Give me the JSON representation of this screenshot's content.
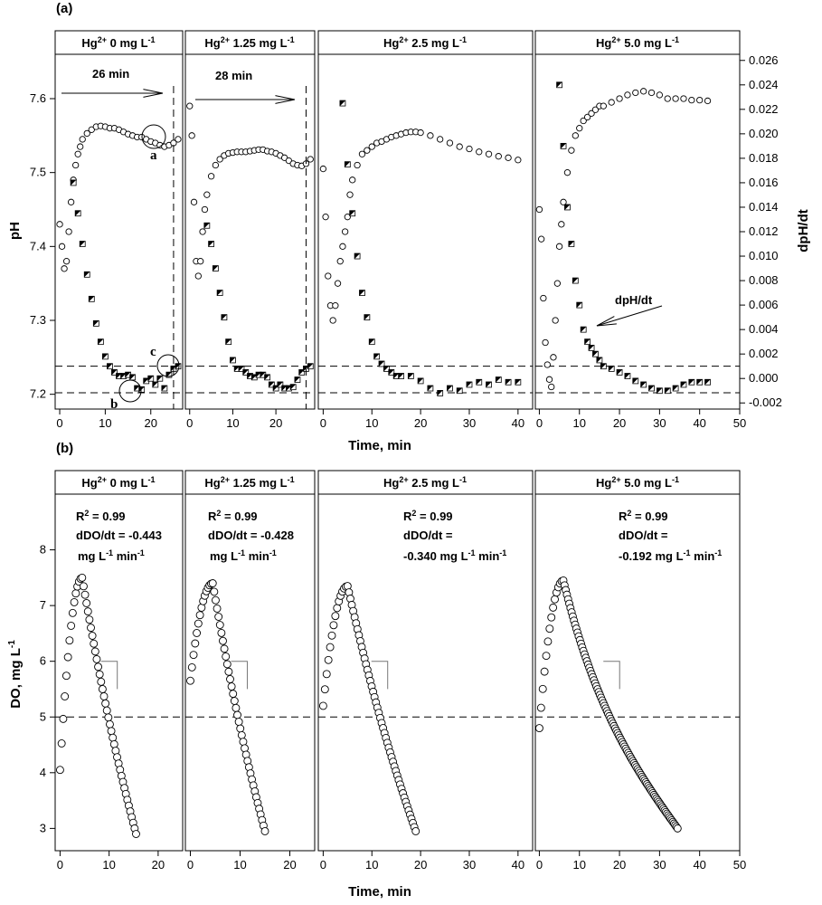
{
  "figure": {
    "panel_a_label": "(a)",
    "panel_b_label": "(b)",
    "a_ylabel_left": "pH",
    "a_ylabel_right": "dpH/dt",
    "a_xlabel": "Time, min",
    "b_ylabel_prefix": "DO, mg L",
    "b_ylabel_sup": "-1",
    "b_xlabel": "Time, min"
  },
  "colors": {
    "marker_fill": "#000000",
    "marker_edge": "#000000",
    "background": "#ffffff"
  },
  "facet_headers": [
    {
      "pre": "Hg",
      "sup1": "2+",
      "mid": " 0 mg L",
      "sup2": "-1"
    },
    {
      "pre": "Hg",
      "sup1": "2+",
      "mid": " 1.25 mg L",
      "sup2": "-1"
    },
    {
      "pre": "Hg",
      "sup1": "2+",
      "mid": " 2.5 mg L",
      "sup2": "-1"
    },
    {
      "pre": "Hg",
      "sup1": "2+",
      "mid": " 5.0 mg L",
      "sup2": "-1"
    }
  ],
  "annotations_a": {
    "arrow1_label": "26 min",
    "arrow2_label": "28 min",
    "dpdt_label": "dpH/dt",
    "point_a": "a",
    "point_b": "b",
    "point_c": "c"
  },
  "annotations_b": [
    {
      "r2": "R",
      "r2_sup": "2",
      "r2_val": " =  0.99",
      "slope_line": "dDO/dt = -0.443",
      "unit_line": "mg L",
      "u1": "-1",
      "u_mid": " min",
      "u2": "-1",
      "unit_prefix": ""
    },
    {
      "r2": "R",
      "r2_sup": "2",
      "r2_val": " =  0.99",
      "slope_line": "dDO/dt = -0.428",
      "unit_line": "mg L",
      "u1": "-1",
      "u_mid": " min",
      "u2": "-1",
      "unit_prefix": ""
    },
    {
      "r2": "R",
      "r2_sup": "2",
      "r2_val": " =  0.99",
      "slope_line": "dDO/dt =",
      "unit_line": "mg L",
      "u1": "-1",
      "u_mid": " min",
      "u2": "-1",
      "unit_prefix": "-0.340 "
    },
    {
      "r2": "R",
      "r2_sup": "2",
      "r2_val": " =  0.99",
      "slope_line": "dDO/dt =",
      "unit_line": "mg L",
      "u1": "-1",
      "u_mid": " min",
      "u2": "-1",
      "unit_prefix": "-0.192 "
    }
  ],
  "chart_data": [
    {
      "panel": "a",
      "type": "scatter",
      "title": "",
      "xlabel": "Time, min",
      "ylabel": "pH",
      "y2label": "dpH/dt",
      "ylim": [
        7.18,
        7.66
      ],
      "y2lim": [
        -0.0025,
        0.0265
      ],
      "yticks": [
        "7.2",
        "7.3",
        "7.4",
        "7.5",
        "7.6"
      ],
      "y2ticks": [
        "-0.002",
        "0.000",
        "0.002",
        "0.004",
        "0.006",
        "0.008",
        "0.010",
        "0.012",
        "0.014",
        "0.016",
        "0.018",
        "0.020",
        "0.022",
        "0.024",
        "0.026"
      ],
      "facets": [
        {
          "condition": "Hg2+ 0 mg L-1",
          "xlim": [
            -1,
            27
          ],
          "xticks": [
            "0",
            "10",
            "20"
          ],
          "series": [
            {
              "name": "pH",
              "marker": "open-circle",
              "x": [
                0,
                0.5,
                1,
                1.5,
                2,
                2.5,
                3,
                3.5,
                4,
                4.5,
                5,
                6,
                7,
                8,
                9,
                10,
                11,
                12,
                13,
                14,
                15,
                16,
                17,
                18,
                19,
                20,
                21,
                22,
                23,
                24,
                25,
                26
              ],
              "y": [
                7.43,
                7.4,
                7.37,
                7.38,
                7.42,
                7.46,
                7.49,
                7.51,
                7.525,
                7.535,
                7.545,
                7.553,
                7.558,
                7.562,
                7.563,
                7.562,
                7.56,
                7.56,
                7.558,
                7.555,
                7.552,
                7.55,
                7.548,
                7.548,
                7.545,
                7.542,
                7.54,
                7.537,
                7.535,
                7.537,
                7.54,
                7.545
              ]
            },
            {
              "name": "dpH/dt",
              "marker": "half-filled-square",
              "x": [
                3,
                4,
                5,
                6,
                7,
                8,
                9,
                10,
                11,
                12,
                13,
                14,
                15,
                16,
                17,
                18,
                19,
                20,
                21,
                22,
                23,
                24,
                25,
                26
              ],
              "y": [
                0.016,
                0.0135,
                0.011,
                0.0085,
                0.0065,
                0.0045,
                0.003,
                0.0018,
                0.001,
                0.0005,
                0.0002,
                0.0002,
                0.0003,
                0.0001,
                -0.0008,
                -0.0009,
                -0.0002,
                0.0,
                -0.0005,
                0.0,
                -0.0008,
                0.0003,
                0.0008,
                0.001
              ]
            }
          ],
          "vline_x": 25
        },
        {
          "condition": "Hg2+ 1.25 mg L-1",
          "xlim": [
            -1,
            29
          ],
          "xticks": [
            "0",
            "10",
            "20"
          ],
          "series": [
            {
              "name": "pH",
              "marker": "open-circle",
              "x": [
                0,
                0.5,
                1,
                1.5,
                2,
                2.5,
                3,
                3.5,
                4,
                5,
                6,
                7,
                8,
                9,
                10,
                11,
                12,
                13,
                14,
                15,
                16,
                17,
                18,
                19,
                20,
                21,
                22,
                23,
                24,
                25,
                26,
                27,
                28
              ],
              "y": [
                7.59,
                7.55,
                7.46,
                7.38,
                7.36,
                7.38,
                7.42,
                7.45,
                7.47,
                7.495,
                7.51,
                7.518,
                7.523,
                7.526,
                7.527,
                7.528,
                7.528,
                7.528,
                7.529,
                7.53,
                7.531,
                7.531,
                7.529,
                7.528,
                7.526,
                7.523,
                7.52,
                7.516,
                7.512,
                7.51,
                7.509,
                7.512,
                7.518
              ]
            },
            {
              "name": "dpH/dt",
              "marker": "half-filled-square",
              "x": [
                4,
                5,
                6,
                7,
                8,
                9,
                10,
                11,
                12,
                13,
                14,
                15,
                16,
                17,
                18,
                19,
                20,
                21,
                22,
                23,
                24,
                25,
                26,
                27,
                28
              ],
              "y": [
                0.0125,
                0.011,
                0.009,
                0.007,
                0.005,
                0.003,
                0.0015,
                0.0008,
                0.0008,
                0.0005,
                0.0002,
                0.0001,
                0.0003,
                0.0003,
                0.0001,
                -0.0005,
                -0.0008,
                -0.0005,
                -0.0008,
                -0.0008,
                -0.0007,
                -0.0001,
                0.0005,
                0.0008,
                0.001
              ]
            }
          ],
          "vline_x": 27
        },
        {
          "condition": "Hg2+ 2.5 mg L-1",
          "xlim": [
            -1,
            43
          ],
          "xticks": [
            "0",
            "10",
            "20",
            "30",
            "40"
          ],
          "series": [
            {
              "name": "pH",
              "marker": "open-circle",
              "x": [
                0,
                0.5,
                1,
                1.5,
                2,
                2.5,
                3,
                3.5,
                4,
                4.5,
                5,
                5.5,
                6,
                7,
                8,
                9,
                10,
                11,
                12,
                13,
                14,
                15,
                16,
                17,
                18,
                19,
                20,
                22,
                24,
                26,
                28,
                30,
                32,
                34,
                36,
                38,
                40
              ],
              "y": [
                7.505,
                7.44,
                7.36,
                7.32,
                7.3,
                7.32,
                7.35,
                7.38,
                7.4,
                7.42,
                7.44,
                7.47,
                7.49,
                7.51,
                7.525,
                7.53,
                7.535,
                7.54,
                7.542,
                7.545,
                7.548,
                7.55,
                7.552,
                7.554,
                7.555,
                7.555,
                7.554,
                7.55,
                7.545,
                7.54,
                7.535,
                7.532,
                7.528,
                7.525,
                7.522,
                7.52,
                7.517
              ]
            },
            {
              "name": "dpH/dt",
              "marker": "half-filled-square",
              "x": [
                4,
                5,
                6,
                7,
                8,
                9,
                10,
                11,
                12,
                13,
                14,
                15,
                16,
                18,
                20,
                22,
                24,
                26,
                28,
                30,
                32,
                34,
                36,
                38,
                40
              ],
              "y": [
                0.0225,
                0.0175,
                0.0135,
                0.01,
                0.007,
                0.005,
                0.003,
                0.0018,
                0.0012,
                0.0008,
                0.0005,
                0.0002,
                0.0002,
                0.0002,
                -0.0002,
                -0.0008,
                -0.0012,
                -0.0008,
                -0.001,
                -0.0005,
                -0.0003,
                -0.0005,
                -0.0001,
                -0.0003,
                -0.0003
              ]
            }
          ]
        },
        {
          "condition": "Hg2+ 5.0 mg L-1",
          "xlim": [
            -1,
            50
          ],
          "xticks": [
            "0",
            "10",
            "20",
            "30",
            "40",
            "50"
          ],
          "series": [
            {
              "name": "pH",
              "marker": "open-circle",
              "x": [
                0,
                0.5,
                1,
                1.5,
                2,
                2.5,
                3,
                3.5,
                4,
                4.5,
                5,
                5.5,
                6,
                7,
                8,
                9,
                10,
                11,
                12,
                13,
                14,
                15,
                16,
                18,
                20,
                22,
                24,
                26,
                28,
                30,
                32,
                34,
                36,
                38,
                40,
                42
              ],
              "y": [
                7.45,
                7.41,
                7.33,
                7.27,
                7.24,
                7.22,
                7.21,
                7.25,
                7.3,
                7.35,
                7.4,
                7.43,
                7.46,
                7.5,
                7.53,
                7.55,
                7.56,
                7.57,
                7.575,
                7.58,
                7.585,
                7.59,
                7.59,
                7.595,
                7.6,
                7.605,
                7.608,
                7.61,
                7.608,
                7.605,
                7.6,
                7.6,
                7.6,
                7.598,
                7.598,
                7.597
              ]
            },
            {
              "name": "dpH/dt",
              "marker": "half-filled-square",
              "x": [
                5,
                6,
                7,
                8,
                9,
                10,
                11,
                12,
                13,
                14,
                15,
                16,
                18,
                20,
                22,
                24,
                26,
                28,
                30,
                32,
                34,
                36,
                38,
                40,
                42
              ],
              "y": [
                0.024,
                0.019,
                0.014,
                0.011,
                0.008,
                0.006,
                0.004,
                0.003,
                0.0025,
                0.002,
                0.0015,
                0.001,
                0.0008,
                0.0005,
                0.0002,
                -0.0002,
                -0.0005,
                -0.0008,
                -0.001,
                -0.001,
                -0.0008,
                -0.0005,
                -0.0003,
                -0.0003,
                -0.0003
              ]
            }
          ]
        }
      ],
      "hlines": [
        {
          "axis": "y",
          "value": 7.238
        },
        {
          "axis": "y",
          "value": 7.202
        }
      ]
    },
    {
      "panel": "b",
      "type": "scatter",
      "title": "",
      "xlabel": "Time, min",
      "ylabel": "DO, mg L-1",
      "ylim": [
        2.6,
        9.0
      ],
      "yticks": [
        "3",
        "4",
        "5",
        "6",
        "7",
        "8"
      ],
      "facets": [
        {
          "condition": "Hg2+ 0 mg L-1",
          "xlim": [
            -1,
            25
          ],
          "xticks": [
            "0",
            "10",
            "20"
          ],
          "peak": [
            4.5,
            7.5
          ],
          "start": [
            0,
            4.05
          ],
          "end": [
            15.5,
            2.9
          ]
        },
        {
          "condition": "Hg2+ 1.25 mg L-1",
          "xlim": [
            -1,
            25
          ],
          "xticks": [
            "0",
            "10",
            "20"
          ],
          "peak": [
            4.5,
            7.4
          ],
          "start": [
            0,
            5.65
          ],
          "end": [
            15,
            2.95
          ]
        },
        {
          "condition": "Hg2+ 2.5 mg L-1",
          "xlim": [
            -1,
            43
          ],
          "xticks": [
            "0",
            "10",
            "20",
            "30",
            "40"
          ],
          "peak": [
            5,
            7.35
          ],
          "start": [
            0,
            5.2
          ],
          "end": [
            19,
            2.95
          ]
        },
        {
          "condition": "Hg2+ 5.0 mg L-1",
          "xlim": [
            -1,
            50
          ],
          "xticks": [
            "0",
            "10",
            "20",
            "30",
            "40",
            "50"
          ],
          "peak": [
            6,
            7.45
          ],
          "start": [
            0,
            4.8
          ],
          "end": [
            34.5,
            3.0
          ]
        }
      ],
      "hlines": [
        {
          "axis": "y",
          "value": 5.0
        }
      ]
    }
  ]
}
